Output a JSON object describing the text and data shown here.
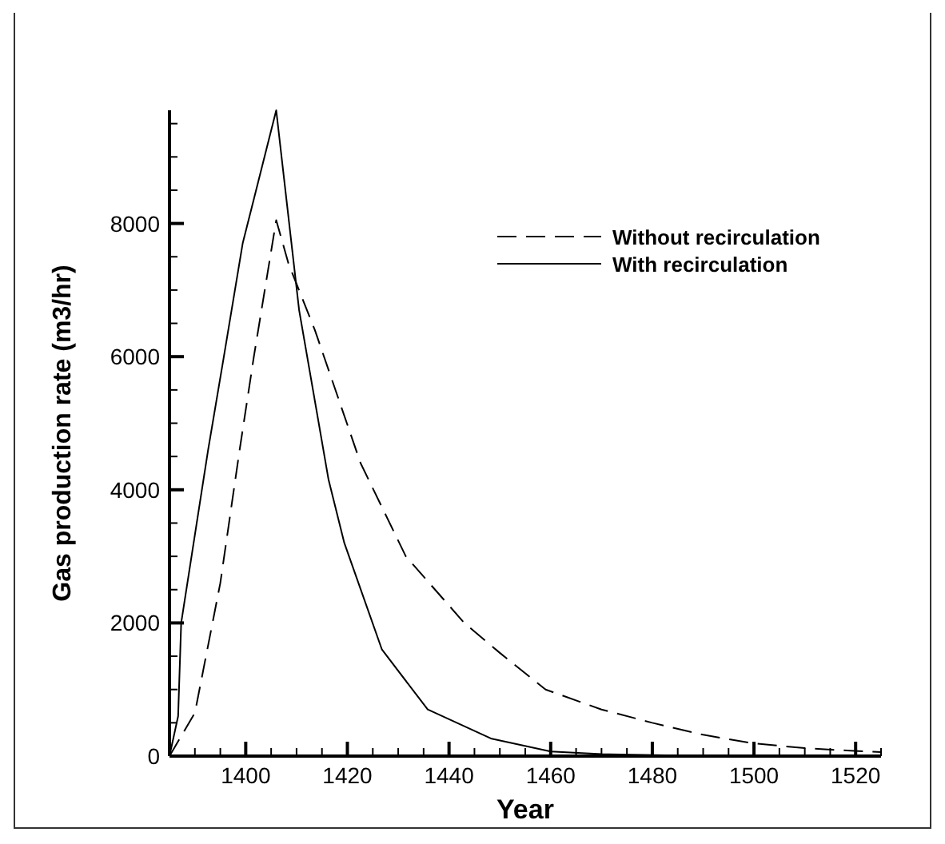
{
  "chart_data": {
    "type": "line",
    "xlabel": "Year",
    "ylabel": "Gas production rate (m3/hr)",
    "xlim": [
      1385,
      1525
    ],
    "ylim": [
      0,
      9700
    ],
    "xticks": [
      {
        "value": 1390,
        "label": null
      },
      {
        "value": 1395,
        "label": null
      },
      1400,
      {
        "value": 1405,
        "label": null
      },
      {
        "value": 1410,
        "label": null
      },
      {
        "value": 1415,
        "label": null
      },
      1420,
      {
        "value": 1425,
        "label": null
      },
      {
        "value": 1430,
        "label": null
      },
      {
        "value": 1435,
        "label": null
      },
      1440,
      {
        "value": 1445,
        "label": null
      },
      {
        "value": 1450,
        "label": null
      },
      {
        "value": 1455,
        "label": null
      },
      1460,
      {
        "value": 1465,
        "label": null
      },
      {
        "value": 1470,
        "label": null
      },
      {
        "value": 1475,
        "label": null
      },
      1480,
      {
        "value": 1485,
        "label": null
      },
      {
        "value": 1490,
        "label": null
      },
      {
        "value": 1495,
        "label": null
      },
      1500,
      {
        "value": 1505,
        "label": null
      },
      {
        "value": 1510,
        "label": null
      },
      {
        "value": 1515,
        "label": null
      },
      1520,
      {
        "value": 1525,
        "label": null
      }
    ],
    "yticks": [
      0,
      {
        "value": 500,
        "label": null
      },
      {
        "value": 1000,
        "label": null
      },
      {
        "value": 1500,
        "label": null
      },
      2000,
      {
        "value": 2500,
        "label": null
      },
      {
        "value": 3000,
        "label": null
      },
      {
        "value": 3500,
        "label": null
      },
      4000,
      {
        "value": 4500,
        "label": null
      },
      {
        "value": 5000,
        "label": null
      },
      {
        "value": 5500,
        "label": null
      },
      6000,
      {
        "value": 6500,
        "label": null
      },
      {
        "value": 7000,
        "label": null
      },
      {
        "value": 7500,
        "label": null
      },
      8000,
      {
        "value": 8500,
        "label": null
      },
      {
        "value": 9000,
        "label": null
      },
      {
        "value": 9500,
        "label": null
      }
    ],
    "grid": false,
    "legend": "top right",
    "series": [
      {
        "name": "Without recirculation",
        "color": "#000000",
        "line_style": "dashed",
        "x": [
          1385,
          1390,
          1395,
          1398.8,
          1401.6,
          1406,
          1408.4,
          1413.6,
          1422.6,
          1431.5,
          1443,
          1450,
          1459,
          1470,
          1480,
          1490,
          1500,
          1510,
          1519,
          1525
        ],
        "values": [
          0,
          650,
          2600,
          4600,
          6000,
          8050,
          7400,
          6400,
          4400,
          3000,
          2000,
          1550,
          1000,
          700,
          500,
          320,
          190,
          120,
          80,
          60
        ]
      },
      {
        "name": "With recirculation",
        "color": "#000000",
        "line_style": "solid",
        "x": [
          1385,
          1386.7,
          1387.3,
          1392.6,
          1395.7,
          1399.4,
          1406,
          1410.5,
          1416.3,
          1419.4,
          1426.8,
          1435.8,
          1448.4,
          1460,
          1470,
          1485,
          1500,
          1525
        ],
        "values": [
          0,
          600,
          2000,
          4600,
          6000,
          7700,
          9700,
          6700,
          4150,
          3200,
          1600,
          700,
          260,
          70,
          30,
          10,
          0,
          0
        ]
      }
    ]
  }
}
